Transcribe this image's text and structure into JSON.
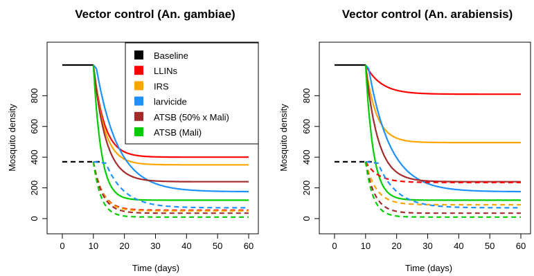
{
  "chart_data": [
    {
      "type": "line",
      "title": "Vector control (An. gambiae)",
      "xlabel": "Time (days)",
      "ylabel": "Mosquito density",
      "xlim": [
        0,
        60
      ],
      "ylim": [
        0,
        1000
      ],
      "xticks": [
        0,
        10,
        20,
        30,
        40,
        50,
        60
      ],
      "yticks": [
        0,
        200,
        400,
        600,
        800
      ],
      "legend": {
        "position": "top-right",
        "entries": [
          {
            "label": "Baseline",
            "color": "#000000"
          },
          {
            "label": "LLINs",
            "color": "#ff0000"
          },
          {
            "label": "IRS",
            "color": "#ffa500"
          },
          {
            "label": "larvicide",
            "color": "#1e90ff"
          },
          {
            "label": "ATSB (50% x Mali)",
            "color": "#a52a2a"
          },
          {
            "label": "ATSB (Mali)",
            "color": "#00cd00"
          }
        ]
      },
      "series": [
        {
          "name": "LLINs",
          "color": "#ff0000",
          "style": "solid",
          "initial": 1000,
          "start": 10,
          "final": 400,
          "tau": 3.5,
          "delay": 0
        },
        {
          "name": "IRS",
          "color": "#ffa500",
          "style": "solid",
          "initial": 1000,
          "start": 10,
          "final": 350,
          "tau": 3.5,
          "delay": 0
        },
        {
          "name": "larvicide",
          "color": "#1e90ff",
          "style": "solid",
          "initial": 1000,
          "start": 10,
          "final": 175,
          "tau": 7,
          "delay": 1
        },
        {
          "name": "ATSB (50% x Mali)",
          "color": "#a52a2a",
          "style": "solid",
          "initial": 1000,
          "start": 10,
          "final": 240,
          "tau": 4,
          "delay": 0
        },
        {
          "name": "ATSB (Mali)",
          "color": "#00cd00",
          "style": "solid",
          "initial": 1000,
          "start": 10,
          "final": 120,
          "tau": 2.5,
          "delay": 0
        },
        {
          "name": "Baseline",
          "color": "#000000",
          "style": "dashed",
          "initial": 370,
          "start": 10,
          "end": 12
        },
        {
          "name": "LLINs",
          "color": "#ff0000",
          "style": "dashed",
          "initial": 370,
          "start": 10,
          "final": 55,
          "tau": 3,
          "delay": 0
        },
        {
          "name": "IRS",
          "color": "#ffa500",
          "style": "dashed",
          "initial": 370,
          "start": 10,
          "final": 50,
          "tau": 3,
          "delay": 0
        },
        {
          "name": "larvicide",
          "color": "#1e90ff",
          "style": "dashed",
          "initial": 370,
          "start": 10,
          "final": 70,
          "tau": 6,
          "delay": 4
        },
        {
          "name": "ATSB (50% x Mali)",
          "color": "#a52a2a",
          "style": "dashed",
          "initial": 370,
          "start": 10,
          "final": 35,
          "tau": 3,
          "delay": 0
        },
        {
          "name": "ATSB (Mali)",
          "color": "#00cd00",
          "style": "dashed",
          "initial": 370,
          "start": 10,
          "final": 10,
          "tau": 2.5,
          "delay": 0
        }
      ]
    },
    {
      "type": "line",
      "title": "Vector control (An. arabiensis)",
      "xlabel": "Time (days)",
      "ylabel": "Mosquito density",
      "xlim": [
        0,
        60
      ],
      "ylim": [
        0,
        1000
      ],
      "xticks": [
        0,
        10,
        20,
        30,
        40,
        50,
        60
      ],
      "yticks": [
        0,
        200,
        400,
        600,
        800
      ],
      "series": [
        {
          "name": "LLINs",
          "color": "#ff0000",
          "style": "solid",
          "initial": 1000,
          "start": 10,
          "final": 810,
          "tau": 5,
          "delay": 0
        },
        {
          "name": "IRS",
          "color": "#ffa500",
          "style": "solid",
          "initial": 1000,
          "start": 10,
          "final": 495,
          "tau": 3.5,
          "delay": 0
        },
        {
          "name": "larvicide",
          "color": "#1e90ff",
          "style": "solid",
          "initial": 1000,
          "start": 10,
          "final": 175,
          "tau": 7,
          "delay": 1
        },
        {
          "name": "ATSB (50% x Mali)",
          "color": "#a52a2a",
          "style": "solid",
          "initial": 1000,
          "start": 10,
          "final": 240,
          "tau": 4,
          "delay": 0
        },
        {
          "name": "ATSB (Mali)",
          "color": "#00cd00",
          "style": "solid",
          "initial": 1000,
          "start": 10,
          "final": 120,
          "tau": 2.5,
          "delay": 0
        },
        {
          "name": "Baseline",
          "color": "#000000",
          "style": "dashed",
          "initial": 370,
          "start": 10,
          "end": 12
        },
        {
          "name": "LLINs",
          "color": "#ff0000",
          "style": "dashed",
          "initial": 370,
          "start": 10,
          "final": 235,
          "tau": 4,
          "delay": 0
        },
        {
          "name": "IRS",
          "color": "#ffa500",
          "style": "dashed",
          "initial": 370,
          "start": 10,
          "final": 90,
          "tau": 3.5,
          "delay": 0
        },
        {
          "name": "larvicide",
          "color": "#1e90ff",
          "style": "dashed",
          "initial": 370,
          "start": 10,
          "final": 70,
          "tau": 6,
          "delay": 4
        },
        {
          "name": "ATSB (50% x Mali)",
          "color": "#a52a2a",
          "style": "dashed",
          "initial": 370,
          "start": 10,
          "final": 35,
          "tau": 3,
          "delay": 0
        },
        {
          "name": "ATSB (Mali)",
          "color": "#00cd00",
          "style": "dashed",
          "initial": 370,
          "start": 10,
          "final": 10,
          "tau": 2.5,
          "delay": 0
        }
      ]
    }
  ]
}
